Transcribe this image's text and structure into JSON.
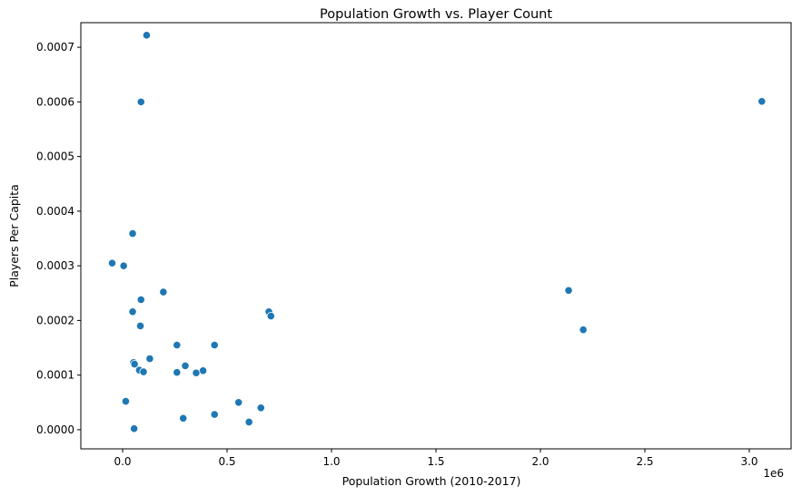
{
  "chart_data": {
    "type": "scatter",
    "title": "Population Growth vs. Player Count",
    "xlabel": "Population Growth (2010-2017)",
    "ylabel": "Players Per Capita",
    "x_offset_label": "1e6",
    "xlim": [
      -200000,
      3200000
    ],
    "ylim": [
      -3.5e-05,
      0.000745
    ],
    "x_ticks": [
      0,
      500000,
      1000000,
      1500000,
      2000000,
      2500000,
      3000000
    ],
    "x_tick_labels": [
      "0.0",
      "0.5",
      "1.0",
      "1.5",
      "2.0",
      "2.5",
      "3.0"
    ],
    "y_ticks": [
      0,
      0.0001,
      0.0002,
      0.0003,
      0.0004,
      0.0005,
      0.0006,
      0.0007
    ],
    "y_tick_labels": [
      "0.0000",
      "0.0001",
      "0.0002",
      "0.0003",
      "0.0004",
      "0.0005",
      "0.0006",
      "0.0007"
    ],
    "grid": false,
    "point_color": "#1f77b4",
    "points": [
      {
        "x": 115000,
        "y": 0.000722
      },
      {
        "x": 88000,
        "y": 0.0006
      },
      {
        "x": 3060000,
        "y": 0.000601
      },
      {
        "x": 48000,
        "y": 0.000359
      },
      {
        "x": -50000,
        "y": 0.000305
      },
      {
        "x": 5000,
        "y": 0.0003
      },
      {
        "x": 2135000,
        "y": 0.000255
      },
      {
        "x": 195000,
        "y": 0.000252
      },
      {
        "x": 88000,
        "y": 0.000238
      },
      {
        "x": 48000,
        "y": 0.000216
      },
      {
        "x": 700000,
        "y": 0.000216
      },
      {
        "x": 710000,
        "y": 0.000208
      },
      {
        "x": 85000,
        "y": 0.00019
      },
      {
        "x": 2205000,
        "y": 0.000183
      },
      {
        "x": 260000,
        "y": 0.000155
      },
      {
        "x": 440000,
        "y": 0.000155
      },
      {
        "x": 130000,
        "y": 0.00013
      },
      {
        "x": 52000,
        "y": 0.000123
      },
      {
        "x": 57000,
        "y": 0.00012
      },
      {
        "x": 300000,
        "y": 0.000117
      },
      {
        "x": 80000,
        "y": 0.000109
      },
      {
        "x": 385000,
        "y": 0.000108
      },
      {
        "x": 100000,
        "y": 0.000106
      },
      {
        "x": 260000,
        "y": 0.000105
      },
      {
        "x": 352000,
        "y": 0.000104
      },
      {
        "x": 15000,
        "y": 5.2e-05
      },
      {
        "x": 555000,
        "y": 5e-05
      },
      {
        "x": 662000,
        "y": 4e-05
      },
      {
        "x": 440000,
        "y": 2.8e-05
      },
      {
        "x": 290000,
        "y": 2.1e-05
      },
      {
        "x": 605000,
        "y": 1.4e-05
      },
      {
        "x": 55000,
        "y": 2e-06
      }
    ]
  }
}
